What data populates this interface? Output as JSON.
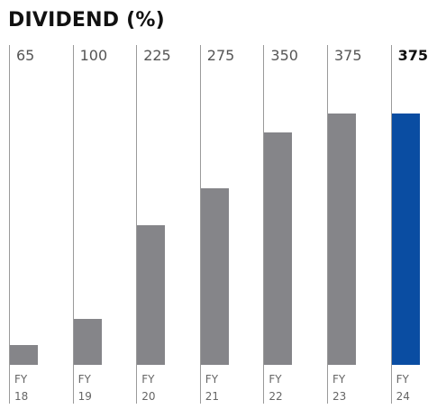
{
  "chart_data": {
    "type": "bar",
    "title": "DIVIDEND (%)",
    "categories": [
      "FY 18",
      "FY 19",
      "FY 20",
      "FY 21",
      "FY 22",
      "FY 23",
      "FY 24"
    ],
    "values": [
      65,
      100,
      225,
      275,
      350,
      375,
      375
    ],
    "colors": [
      "#858589",
      "#858589",
      "#858589",
      "#858589",
      "#858589",
      "#858589",
      "#0a4da2"
    ],
    "ylim": [
      38.5,
      375
    ]
  }
}
